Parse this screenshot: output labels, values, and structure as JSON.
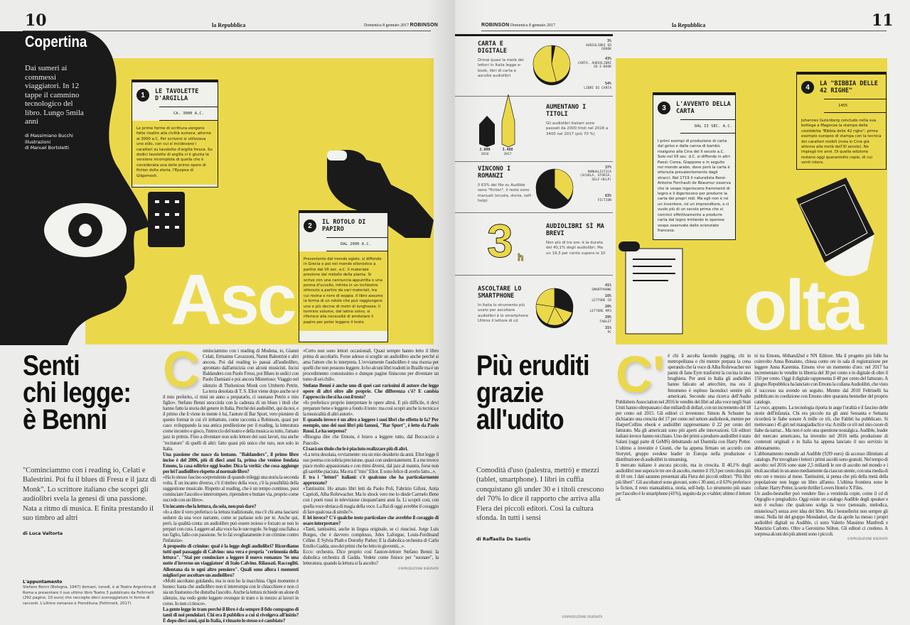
{
  "left_header": {
    "page_number": "10",
    "masthead": "la Repubblica",
    "date": "Domenica 8 gennaio 2017",
    "section": "ROBINSON"
  },
  "right_header": {
    "page_number": "11",
    "masthead": "la Repubblica",
    "date": "Domenica 8 gennaio 2017",
    "section": "ROBINSON"
  },
  "cover": {
    "rubric": "Copertina",
    "intro": "Dai sumeri ai commessi viaggiatori. In 12 tappe il cammino tecnologico del libro. Lungo 5mila anni",
    "credits_1": "di Massimiano Bucchi",
    "credits_2": "illustrazioni",
    "credits_3": "di Manuel Bortoletti",
    "big_word_left": "Asc",
    "big_word_right": "olta"
  },
  "boxes": [
    {
      "number": "1",
      "title": "LE TAVOLETTE D'ARGILLA",
      "date": "CA. 3000 A.C.",
      "text": "Le prime forme di scrittura vengono fatte risalire alla civiltà sumera, attorno al 3000 a.C. Per scrivere si utilizzava uno stilo, con cui si incidevano i caratteri su tavolette d'argilla fresca. Su dodici tavolette di argilla ci è giunta la versione incompleta di quella che è considerata una delle prime opere di fiction della storia, l'Epopea di Gilgamesh."
    },
    {
      "number": "2",
      "title": "IL ROTOLO DI PAPIRO",
      "date": "DAL 2000 A.C.",
      "text": "Proveniente dal mondo egizio, si diffonde in Grecia e poi nel mondo ellenistico a partire dal VII sec. a.C. Il materiale proviene dal midollo della pianta. Si scrive con una cannuccia appuntita o una penna d'uccello, intinta in un inchiostro ottenuto a partire da vari materiali, tra cui resina o nero di seppia. Il libro assume la forma di un rotolo che può raggiungere uno o più decine di metri di lunghezza. Il termine volume, dal latino volvo, si riferisce alla necessità di arrotolare il papiro per poter leggere il testo."
    },
    {
      "number": "3",
      "title": "L'AVVENTO DELLA CARTA",
      "date": "DAL II SEC. A.C.",
      "text": "I primi esempi di produzione di carta dal gelso e dalla canna di bambù risalgono alla Cina del II secolo a.C. Solo nel VII sec. d.C. si diffonde in altri Paesi: Corea, Giappone e in seguito nel mondo arabo, dove però la carta è ottenuta prevalentemente dagli stracci. Nel 1719 il naturalista René-Antoine Ferchault de Réaumur osserva che le vespe ingeriscono frammenti di legno e li digeriscono per produrre la carta dei propri nidi. Ma egli non è né un inventore, né un imprenditore, e ci vuole più di un secolo prima che si cominci effettivamente a produrre carta dal legno imitando le operose vespe osservate dallo scienziato francese."
    },
    {
      "number": "4",
      "title": "LA \"BIBBIA DELLE 42 RIGHE\"",
      "date": "1455",
      "text": "Johannes Gutenberg conclude nella sua bottega a Magonza la stampa della cosiddetta \"Bibbia delle 42 righe\", primo esempio europeo di stampa con la tecnica dei caratteri mobili (nota in Cina già attorno alla metà dell'XI secolo). Ne impiegò tre anni. Di quella edizione restano oggi quarantotto copie, di cui venti intere."
    }
  ],
  "infographic": {
    "carta_digitale": {
      "title": "CARTA E DIGITALE",
      "text": "Ormai quasi la metà dei lettori in Italia legge e-book, libri di carta e ascolta audiolibri",
      "slices": [
        {
          "value": 3,
          "pct": "3%",
          "label": "AUDIOLIBRI ED EBOOK",
          "color": "#1a1a1a"
        },
        {
          "value": 43,
          "pct": "43%",
          "label": "CARTA, AUDIOLIBRI ED E-BOOK",
          "color": "#ebd84a"
        },
        {
          "value": 54,
          "pct": "54%",
          "label": "LIBRI DI CARTA",
          "color": "#ebd84a"
        }
      ]
    },
    "titoli": {
      "title": "AUMENTANO I TITOLI",
      "text": "Gli audiolibri italiani sono passati da 2000 titoli nel 2016 a 3400 nel 2017 (più 70 %)",
      "bars": [
        {
          "value": "2.000",
          "year": "2016",
          "color": "#1a1a1a"
        },
        {
          "value": "3.400",
          "year": "2017",
          "color": "#ebd84a"
        }
      ]
    },
    "romanzi": {
      "title": "VINCONO I ROMANZI",
      "text": "Il 63% dei file su Audible sono \"fiction\", il resto sono manuali (scuola, storia, self-help)",
      "slices": [
        {
          "value": 37,
          "pct": "37%",
          "label": "MANUALISTICA (SCUOLA, STORIA, SELF-HELP)",
          "color": "#ebd84a"
        },
        {
          "value": 63,
          "pct": "63%",
          "label": "FICTION",
          "color": "#1a1a1a"
        }
      ]
    },
    "brevi": {
      "big_number": "3",
      "unit": "h",
      "title": "AUDIOLIBRI SÌ MA BREVI",
      "text": "Non più di tre ore: è la durata del 40,1% degli audiolibri. Ma un 19,3 per cento supera le 10"
    },
    "smartphone": {
      "title": "ASCOLTARE LO SMARTPHONE",
      "text": "In Italia lo strumento più usato per ascoltare audiolibri è lo smartphone Ultimo il lettore di cd",
      "slices": [
        {
          "value": 41,
          "pct": "41%",
          "label": "SMARTPHONE",
          "color": "#1a1a1a"
        },
        {
          "value": 16,
          "pct": "16%",
          "label": "LETTORE CD",
          "color": "#ebd84a"
        },
        {
          "value": 20,
          "pct": "20%",
          "label": "LETTORE MP3",
          "color": "#ebd84a"
        },
        {
          "value": 29,
          "pct": "29%",
          "label": "TABLET",
          "color": "#ebd84a"
        },
        {
          "value": 31,
          "pct": "31%",
          "label": "PC",
          "color": "#ebd84a"
        }
      ]
    }
  },
  "article_left": {
    "headline_1": "Senti",
    "headline_2": "chi legge:",
    "headline_3": "è Benni",
    "deck": "\"Cominciammo con i reading io, Celati e Balestrini. Poi fu il blues di Fresu e il jazz di Monk\". Lo scrittore italiano che scoprì gli audiolibri svela la genesi di una passione. Nata a ritmo di musica. E finita prestando il suo timbro ad altri",
    "byline": "di Luca Valtorta",
    "dropcap": "C",
    "col1_p1": "ominciammo con i reading di Modena, io, Gianni Celati, Ermanno Cavazzoni, Nanni Balestrini e altri ancora. Poi dal reading io passai all'audiolibro, aprontato dall'amicizia con alcuni musicisti. Incisi Baldanders con Paolo Fresu, poi Blues in sedici con Paolo Damiani e poi ancora Misterioso: Viaggio nel silenzio di Thelonious Monk con Umberto Petrin. La terra desolata di T. S. Eliot viene dopo anche se è il mio preferito, ci misi un anno a prepararlo, ci suonano Petrin e mio figlio». Stefano Benni snocciola con la cadenza di un blues i titoli che hanno fatto la storia del genere in Italia. Perché dei audiolibri, qui da noi, e il primo che li viene in mente è lui, l'autore di Bar Sport, vero pioniere di questo format in cui s'è imbattuto, come racconta a Robinson, quasi per caso: sviluppando la sua antica predilezione per il reading, la letteratura come incontro e gioco, l'intreccio del teatro e della musica su tutto, l'amato jazz in primis. Fino a diventare non solo lettore dei suoi lavori, ma anche \"recitatore\" di quelli di altri: fatto quasi più unico che raro, non solo in Italia.",
    "col1_q1": "Una passione che nasce da lontano. \"Baldanders\", il primo libro inciso è del 2006, più di dieci anni fa, prima che venisse fondata Emons, la casa editrice oggi leader. Dica la verità: che cosa aggiunge per lei l'audiolibro rispetto al normale libro?",
    "col1_p2": "«Ha lo stesso fascino sorprendente di quando trileggi una storia la seconda volta. È un incanto diverso, c'è il timbro della voce, c'è la possibilità della suggestione musicale. Rispetto al reading, che è un tempo continuo, puoi cominciare l'ascolto e interrompere, riprendere e buttare via, proprio come succede con un libro».",
    "col1_q2": "Un incanto che la lettura, da sola, non può dare?",
    "col1_p3": "«Io a dire il vero preferisco la lettura tradizionale, ma c'è chi ama lasciarsi sedurre da una voce narrante, come se parlasse solo per te. Anche qui, però, la qualità conta: un audiolibro può essere noioso e forzato se non lo prepari con cura. Leggere ad alta voce ha le sue regole. Se leggi una fiaba a tuo figlio, fallo con passione. Se lo fai svogliatamente è un crimine contro l'infanzia».",
    "col1_q3": "A proposito di crimine: qual è la legge degli audiolibri? Ricordiamo tutti quel passaggio di Calvino: una vera e propria \"cerimonia della lettura\". \"Stai per cominciare a leggere il nuovo romanzo 'Se una notte d'inverno un viaggiatore' di Italo Calvino. Rilassati. Raccogliti. Allontana da te ogni altro pensiero\". Quali sono allora i momenti migliori per ascoltare un audiolibro?",
    "col1_p4": "«Molti ascoltano guidando, ma io non ho la macchina. Ogni momento è buono: basta che audiolibro non ti interrompa con le chiacchiere e non ci sia un frastuono che disturba l'ascolto. Anche la lettura richiede un alone di silenzio, ma vedo gente leggere ovunque in tram o in mezzo ai lavori in corso. Io non ci riesco».",
    "col2_q1": "La gente legge in tram perché il libro è da sempre il fido compagno di tanti di noi pendolari. Chi era il pubblico a cui si rivolgeva all'inizio? È dopo dieci anni, qui in Italia, è rimasto lo stesso o è cambiato?",
    "col2_p1": "«Certo non sono lettori occasionali. Quasi sempre hanno letto il libro prima di ascoltarlo. Forse adesso si sceglie un audiolibro anche perché si ama l'attore che lo interpreta. L'ovviamente l'audiolibro è una risorsa per quelli che non possono leggere. Io ho alcuni libri tradotti in Braille ma è un procedimento costosissimo e dunque pagine finiscono per diventare un tomo di sei chili».",
    "col2_q2": "Stefano Benni è anche uno di quei cast rarissimi di autore che legge opere di altri oltre alle proprie. Che differenza c'è? E cambia l'approccio che si ha con il testo?",
    "col2_p2": "«Io preferisco proprio interpretare le opere altrui. E più difficile, ti devi preparare bene e leggere a fondo il testo: ma così scopri anche la tecnica e la musicalità di altri autori».",
    "col2_q3": "E quando invece è un altro a leggere i suoi libri che effetto le fa? Per esempio, uno dei suoi libri più famosi, \"Bar Sport\", è letto da Paolo Rossi. Le ha sorpreso?",
    "col2_p3": "«Bisogna dire che Emons, è bravo a leggere tutto, dal Boccaccio a Pascoli».",
    "col2_q4": "Ci sarà un titolo che le è piaciuto realizzare più di altri.",
    "col2_p4": "«La terra desolata, ovviamente: era un mio desiderio da anni. Eliot legge il suo poema con sobria precisione, quasi con understatement. E a me invece piace molto appassionata e con ritmi diversi, dal jazz al mantra, forse non gli sarebbe piaciuta. Ma era il \"mio\" Eliot. E sono felice di averlo fatto...».",
    "col2_q5": "E tra i \"lettori\" italiani: c'è qualcuno che ha particolarmente apprezzato?",
    "col2_p5": "«Tantissimi. Ho amato libri letti da Paolo Poli, Fabrizio Gifuni, Anita Caprioli, Alba Rohrwacher. Ma lo shock vero me lo diede Carmelo Bene con i poeti russi in televisione cinquant'anni anni fa. Li scoprii così, con quella voce ubriaca di magia della voce. La Rai di oggi avrebbe il coraggio di fare qualcosa di simile?».",
    "col2_q6": "E lei invece? C'è qualche testo particolare che avrebbe il coraggio di osare interpretare?",
    "col2_p6": "«Tanti, tantissimi, anche in lingua originale, se ci riuscissi. Jorge Luis Borges, che è davvero complesso, Jules Laforgue, Louis-Ferdinand Céline. E Sylvia Plath e Dorothy Parker. E la diabolica orchestra di Carlo Emilio Gadda, uno dei primi che ho letto in gioventù...».",
    "col2_p7": "Ecco: orchestra. Dice proprio così l'autore-lettore Stefano Benni: la diabolica orchestra di Gadda. Vedete come finisce per \"suonare\", la letteratura, quando la lettura si fa ascolto?",
    "appointment_title": "L'appuntamento",
    "appointment_text": "Stefano Benni (Bologna, 1947) domani, lunedì, è al Teatro Argentina di Roma a presentare il suo ultimo libro Teatro 3 pubblicato da Feltrinelli (292 pagine, 10 euro) che raccoglie dieci sceneggiature in forma di racconti. L'ultimo romanzo è Prendiluna (Feltrinelli, 2017)",
    "copyright": "©RIPRODUZIONE RISERVATA"
  },
  "article_right": {
    "headline_1": "Più eruditi",
    "headline_2": "grazie",
    "headline_3": "all'udito",
    "deck": "Comodità d'uso (palestra, metrò) e mezzi (tablet, smartphone). I libri in cuffia conquistano gli under 30 e i titoli crescono del 70% lo dice il rapporto che arriva alla Fiera dei piccoli editori. Così la cultura sfonda. In tutti i sensi",
    "byline": "di Raffaella De Santis",
    "dropcap": "C'",
    "col1_p1": "è chi li ascolta facendo jogging, chi in metropolitana e chi mentre prepara la cena sperando che la voce di Alba Rohrwacher nei panni di Jane Eyre trasformi la cucina in una brughiera. Per anni in Italia gli audiolibri hanno faticato ad attecchire, ma ora il fenomeno è esploso facendoci sentire più americani. Secondo una ricerca dell'Audio Publishers Association nel 2016 le vendite dei libri ad alta voce negli Stati Uniti hanno oltrepassato i due miliardi di dollari, con un incremento del 18 per cento sul 2015. Gli editori ci investono: Simon & Schuster ha dichiarato una crescita del 17 per cento nel settore audiobook, mentre per HarperCollins ebook e audiolibri rappresentano il 22 per cento del fatturato. Ma gli americani sono più aperti alle innovazioni. Gli editori italiani invece hanno nicchiato. Uno dei primi a produrre audiolibri è stato Salani (oggi parte di GeMS) debuttando nel Duemila con Harry Potter. L'ultimo a investire è Giunti, che ha appena firmato un accordo con Storytel, gruppo svedese leader in Europa nella produzione e distribuzione di audiolibri in streaming.",
    "col1_p2": "Il mercato italiano è ancora piccolo, ma in crescita. Il 40,1% degli audiolibri non supera le tre ore di ascolto, mentre il 19,3 per cento dura più di 10 ore. I dati saranno presentati alla Fiera dei piccoli editori: \"Più libri più liberi\". Gli ascoltatori sono giovani, sotto i 30 anni, e il 63% preferisce la fiction, il resto manualistica, storia, self-help. Lo strumento più usato per l'ascolto è lo smartphone (41%), seguito da pc e tablet; ultimo il lettore cd.",
    "col2_p1": "ni tra Emons, 66thand2nd e NN Editore. Ma il progetto più folle ha coinvolto Anna Bonaiuto, chiusa cento ore in sala di registrazione per leggere Anna Karenina. Emons vive un momento d'oro: nel 2017 ha incrementato le vendite in libreria del 30 per cento e in digitale di oltre il 150 per cento. Oggi il digitale rappresenta il 40 per cento del fatturato. A giugno Repubblica ha lanciato con Emons la collana Audiolibri, che visto il successo sta avendo un seguito. Mentre dal 2010 Feltrinelli ha pubblicato in coedizione con Emons oltre quaranta bestseller del proprio catalogo.",
    "col2_p2": "La voce, appunto. La tecnologia riporta in auge l'oralità e il fascino delle storie dell'infanzia. Chi era piccolo tra gli anni Sessanta e Settanta ricorderà le fiabe sonore A mille ce n'è, che Fabbri ha pubblicato. Si mettevano i 45 giri nel mangiadischi e via: A mille ce n'è nel mio cuore di fiabe da narrar... Ma non è solo una questione nostalgica. Audible, leader del mercato americano, ha investito nel 2016 nella produzione di contenuti originali e in Italia ha appena lanciato il suo servizio in abbonamento.",
    "col2_p3": "L'abbonamento mensile ad Audible (9,99 euro) dà accesso illimitato al catalogo. Per invogliare i lettori i primi ascolti sono gratuiti. Nel tempo di ascolto: nel 2016 sono state 2,5 miliardi le ore di ascolto nel mondo e i titoli ascoltati in un anno mediamente da ciascun utente, con una media di otto ore e mezzo al mese. Tantissimi, si pensa che più della metà della popolazione non legge un libro all'anno. L'ultima frontiera sono le collane: Harry Potter, la serie thriller Lovers Hotel e X Files.",
    "col2_p4": "Un audio-bestseller può vendere fino a ventimila copie, come il cd di Orgoglio e pregiudizio. Oggi esiste un catalogo Audible degli speaker e non è escluso che qualcuno scelga la voce (sensuale, melodica, misteriosa?) senza aver idea del libro. Ma i bestsellerist non sempre gli stessi. Nella hit del gruppo Mondadori, che da aprile ha messo i propri audiolibri digitali su Audible, ci sono Valerio Massimo Manfredi e Maurizio Carlotto. Oltre a Geronimo Stilton. Gli editori ci credono. A sorpresa alcuni dei più attenti sono i piccoli.",
    "copyright": "©RIPRODUZIONE RISERVATA"
  },
  "colors": {
    "yellow": "#ebd84a",
    "black": "#1a1a1a",
    "paper": "#ececeb"
  }
}
